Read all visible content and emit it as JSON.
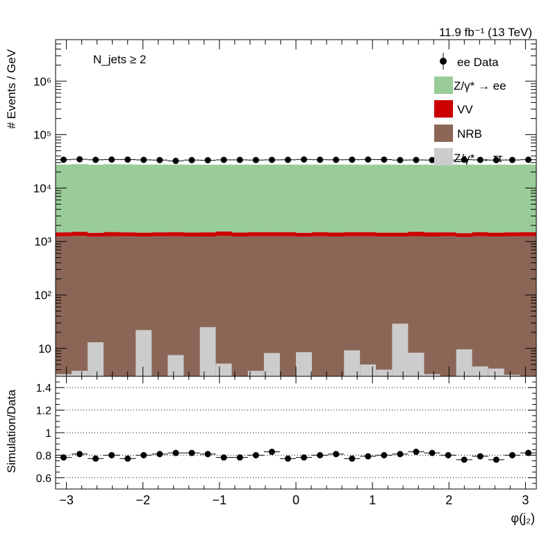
{
  "lumi_label": "11.9 fb⁻¹ (13 TeV)",
  "selection_label": "N_jets ≥ 2",
  "ratio_ylabel": "Simulation/Data",
  "colors": {
    "zee": "#99cc99",
    "vv": "#cc0000",
    "nrb": "#8b6656",
    "ztt": "#cccccc",
    "data": "#000000"
  },
  "chart_data": [
    {
      "type": "bar",
      "stacked": true,
      "log_y": true,
      "ylabel": "# Events / GeV",
      "ylim": [
        3,
        6000000
      ],
      "xlim": [
        -3.1416,
        3.1416
      ],
      "x_ticks": [
        -3,
        -2,
        -1,
        0,
        1,
        2,
        3
      ],
      "y_ticks": [
        {
          "value": 10,
          "label": "10"
        },
        {
          "value": 100,
          "label": "10²"
        },
        {
          "value": 1000,
          "label": "10³"
        },
        {
          "value": 10000,
          "label": "10⁴"
        },
        {
          "value": 100000,
          "label": "10⁵"
        },
        {
          "value": 1000000,
          "label": "10⁶"
        }
      ],
      "legend_position": "top-right",
      "legend": [
        "ee Data",
        "Z/γ* → ee",
        "VV",
        "NRB",
        "Z/γ* → ττ"
      ],
      "bin_edges": [
        -3.1416,
        -2.9322,
        -2.7227,
        -2.5133,
        -2.3038,
        -2.0944,
        -1.885,
        -1.6755,
        -1.4661,
        -1.2566,
        -1.0472,
        -0.8378,
        -0.6283,
        -0.4189,
        -0.2094,
        0.0,
        0.2094,
        0.4189,
        0.6283,
        0.8378,
        1.0472,
        1.2566,
        1.4661,
        1.6755,
        1.885,
        2.0944,
        2.3038,
        2.5133,
        2.7227,
        2.9322,
        3.1416
      ],
      "series": [
        {
          "name": "NRB",
          "values": [
            1250,
            1270,
            1230,
            1260,
            1250,
            1240,
            1250,
            1250,
            1240,
            1240,
            1270,
            1240,
            1250,
            1250,
            1250,
            1230,
            1250,
            1240,
            1250,
            1250,
            1240,
            1230,
            1260,
            1240,
            1250,
            1220,
            1250,
            1240,
            1250,
            1250
          ]
        },
        {
          "name": "VV",
          "values": [
            230,
            250,
            220,
            240,
            230,
            220,
            230,
            240,
            230,
            240,
            270,
            230,
            240,
            240,
            240,
            220,
            240,
            230,
            240,
            240,
            220,
            230,
            260,
            240,
            230,
            210,
            240,
            220,
            230,
            240
          ]
        },
        {
          "name": "Z/γ* → ττ",
          "values": [
            3.3,
            3.8,
            13,
            3,
            3,
            22,
            3,
            7.5,
            3,
            25,
            5.2,
            3,
            3.8,
            8.2,
            3,
            8.5,
            3,
            3,
            9.2,
            5,
            4,
            29,
            8.3,
            3.3,
            3,
            9.6,
            4.6,
            4.2,
            3.2,
            3
          ]
        },
        {
          "name": "Z/γ* → ee",
          "values": [
            26000,
            26500,
            26000,
            26400,
            26200,
            26000,
            26100,
            26000,
            26000,
            25900,
            25900,
            26000,
            25900,
            26000,
            26000,
            26000,
            26000,
            26100,
            26000,
            25900,
            26100,
            26000,
            25900,
            26000,
            26100,
            26000,
            25900,
            25900,
            25800,
            26100
          ]
        }
      ],
      "data_values": [
        34000,
        34600,
        33800,
        34200,
        34100,
        33700,
        33500,
        32300,
        33400,
        33200,
        33700,
        33700,
        33500,
        33700,
        33800,
        34300,
        33900,
        33800,
        34000,
        34200,
        34100,
        33400,
        33600,
        33500,
        33500,
        33900,
        33700,
        33400,
        33600,
        33900
      ]
    },
    {
      "type": "scatter",
      "ylabel": "Simulation/Data",
      "xlabel": "φ(j₂)",
      "ylim": [
        0.5,
        1.5
      ],
      "xlim": [
        -3.1416,
        3.1416
      ],
      "x_ticks": [
        -3,
        -2,
        -1,
        0,
        1,
        2,
        3
      ],
      "y_ticks": [
        0.6,
        0.8,
        1,
        1.2,
        1.4
      ],
      "grid": "horizontal dotted",
      "x": [
        -3.0369,
        -2.8274,
        -2.618,
        -2.4086,
        -2.1991,
        -1.9897,
        -1.7802,
        -1.5708,
        -1.3614,
        -1.1519,
        -0.9425,
        -0.733,
        -0.5236,
        -0.3142,
        -0.1047,
        0.1047,
        0.3142,
        0.5236,
        0.733,
        0.9425,
        1.1519,
        1.3614,
        1.5708,
        1.7802,
        1.9897,
        2.1991,
        2.4086,
        2.618,
        2.8274,
        3.0369
      ],
      "values": [
        0.78,
        0.81,
        0.77,
        0.8,
        0.77,
        0.8,
        0.81,
        0.82,
        0.82,
        0.81,
        0.78,
        0.78,
        0.8,
        0.83,
        0.77,
        0.78,
        0.8,
        0.81,
        0.77,
        0.79,
        0.8,
        0.81,
        0.83,
        0.82,
        0.8,
        0.76,
        0.79,
        0.76,
        0.8,
        0.82
      ]
    }
  ]
}
